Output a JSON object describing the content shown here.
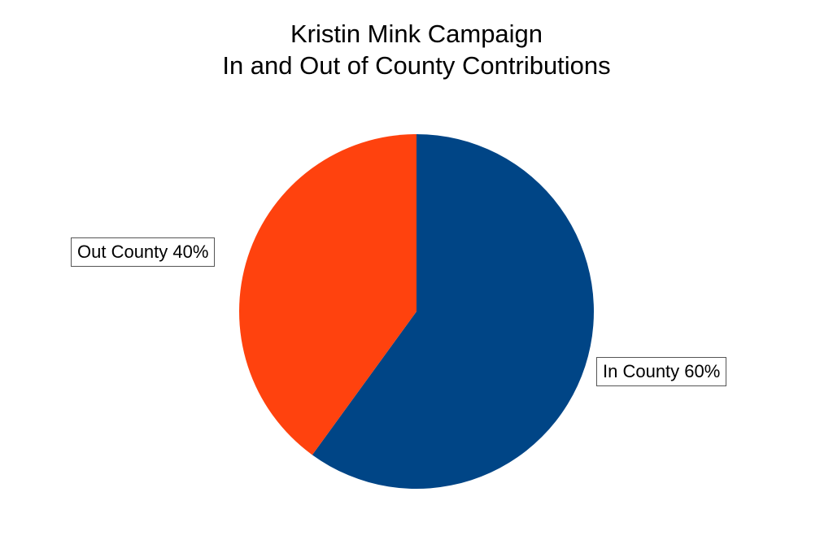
{
  "chart_data": {
    "type": "pie",
    "title": "Kristin Mink Campaign",
    "subtitle": "In and Out of County Contributions",
    "slices": [
      {
        "label": "In County",
        "value": 60,
        "label_text": "In County 60%",
        "color": "#004586"
      },
      {
        "label": "Out County",
        "value": 40,
        "label_text": "Out County 40%",
        "color": "#ff420e"
      }
    ],
    "start_angle_deg": 0,
    "direction": "clockwise",
    "legend": "none"
  }
}
